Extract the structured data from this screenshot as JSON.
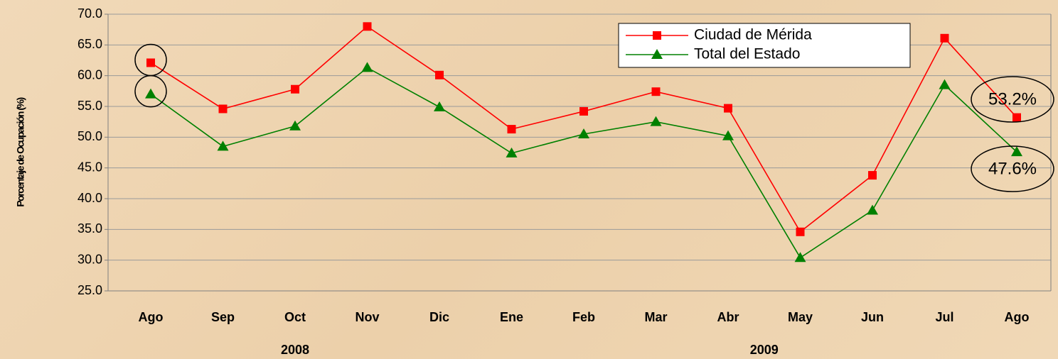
{
  "chart_data": {
    "type": "line",
    "y_label": "Porcentaje de Ocupación (%)",
    "categories": [
      "Ago",
      "Sep",
      "Oct",
      "Nov",
      "Dic",
      "Ene",
      "Feb",
      "Mar",
      "Abr",
      "May",
      "Jun",
      "Jul",
      "Ago"
    ],
    "groups": [
      {
        "label": "2008",
        "categories": [
          "Ago",
          "Sep",
          "Oct",
          "Nov",
          "Dic"
        ]
      },
      {
        "label": "2009",
        "categories": [
          "Ene",
          "Feb",
          "Mar",
          "Abr",
          "May",
          "Jun",
          "Jul",
          "Ago"
        ]
      }
    ],
    "series": [
      {
        "name": "Ciudad de Mérida",
        "color": "#ff0000",
        "marker": "square",
        "values": [
          62.1,
          54.6,
          57.8,
          68.0,
          60.1,
          51.3,
          54.2,
          57.4,
          54.7,
          34.6,
          43.8,
          66.1,
          53.2
        ],
        "value_labels": [
          null,
          null,
          null,
          null,
          null,
          null,
          null,
          null,
          null,
          null,
          null,
          null,
          "53.2%"
        ]
      },
      {
        "name": "Total del Estado",
        "color": "#008000",
        "marker": "triangle",
        "values": [
          57.0,
          48.5,
          51.8,
          61.3,
          54.9,
          47.4,
          50.5,
          52.5,
          50.2,
          30.4,
          38.1,
          58.5,
          47.6
        ],
        "value_labels": [
          null,
          null,
          null,
          null,
          null,
          null,
          null,
          null,
          null,
          null,
          null,
          null,
          "47.6%"
        ]
      }
    ],
    "ylim": [
      25,
      70
    ],
    "yticks": [
      {
        "value": 25,
        "label": "25.0"
      },
      {
        "value": 30,
        "label": "30.0"
      },
      {
        "value": 35,
        "label": "35.0"
      },
      {
        "value": 40,
        "label": "40.0"
      },
      {
        "value": 45,
        "label": "45.0"
      },
      {
        "value": 50,
        "label": "50.0"
      },
      {
        "value": 55,
        "label": "55.0"
      },
      {
        "value": 60,
        "label": "60.0"
      },
      {
        "value": 65,
        "label": "65.0"
      },
      {
        "value": 70,
        "label": "70.0"
      }
    ],
    "grid": true,
    "legend": "top-right"
  }
}
